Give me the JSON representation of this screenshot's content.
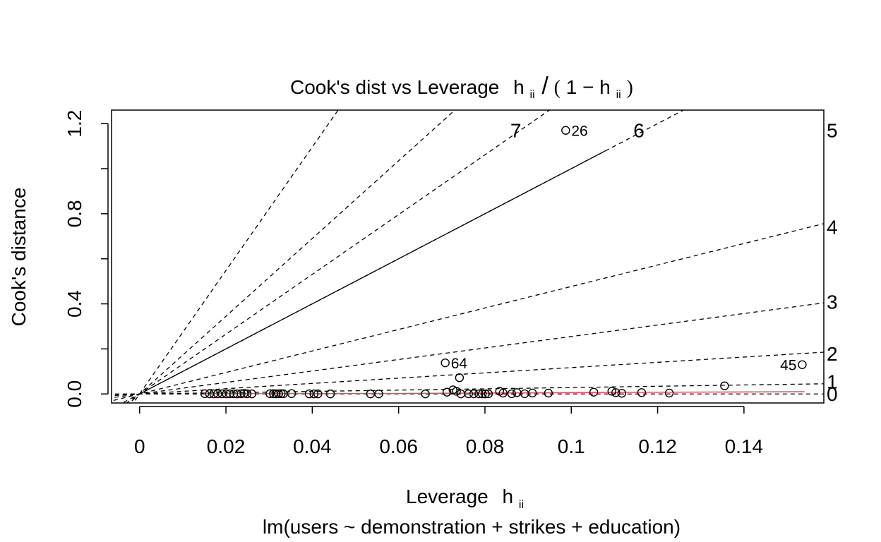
{
  "chart_data": {
    "type": "scatter",
    "title": "Cook's dist vs Leverage",
    "title_formula": {
      "h": "h",
      "ii": "ii",
      "slash": "/",
      "lparen": "(",
      "one_minus": "1 − ",
      "rparen": ")"
    },
    "xlabel": "Leverage",
    "xlabel_sym": {
      "h": "h",
      "ii": "ii"
    },
    "ylabel": "Cook's distance",
    "subtitle": "lm(users ~ demonstration + strikes + education)",
    "xlim": [
      -0.0065,
      0.1585
    ],
    "ylim": [
      -0.04,
      1.26
    ],
    "x_ticks": [
      0,
      0.02,
      0.04,
      0.06,
      0.08,
      0.1,
      0.12,
      0.14
    ],
    "x_tick_labels": [
      "0",
      "0.02",
      "0.04",
      "0.06",
      "0.08",
      "0.1",
      "0.12",
      "0.14"
    ],
    "y_ticks": [
      0,
      0.2,
      0.4,
      0.6,
      0.8,
      1.0,
      1.2
    ],
    "y_tick_labels": [
      "0.0",
      "",
      "0.4",
      "",
      "0.8",
      "",
      "1.2"
    ],
    "grid": false,
    "contour_slopes": [
      {
        "slope": 27.4,
        "label": ""
      },
      {
        "slope": 17.25,
        "label": ""
      },
      {
        "slope": 13.27,
        "label": "7"
      },
      {
        "slope": 10.0,
        "label": "6"
      },
      {
        "slope": 4.77,
        "label": "4"
      },
      {
        "slope": 2.55,
        "label": "3"
      },
      {
        "slope": 1.17,
        "label": "2"
      },
      {
        "slope": 0.285,
        "label": "1"
      },
      {
        "slope": 0.0,
        "label": "0"
      }
    ],
    "right_axis_labels": [
      {
        "label": "5",
        "y": 1.17
      },
      {
        "label": "4",
        "y": 0.742
      },
      {
        "label": "3",
        "y": 0.41
      },
      {
        "label": "2",
        "y": 0.18
      },
      {
        "label": "1",
        "y": 0.055
      },
      {
        "label": "0",
        "y": 0.0
      }
    ],
    "smooth_line": {
      "color": "#DF536B",
      "x": [
        0.015,
        0.06,
        0.1,
        0.154
      ],
      "y": [
        0.002,
        0.002,
        0.006,
        0.01
      ]
    },
    "points": {
      "x": [
        0.0151,
        0.0162,
        0.0172,
        0.0181,
        0.0191,
        0.0201,
        0.0209,
        0.0218,
        0.0226,
        0.0235,
        0.0242,
        0.0249,
        0.026,
        0.0302,
        0.031,
        0.0316,
        0.0322,
        0.0328,
        0.0333,
        0.0352,
        0.0393,
        0.0404,
        0.0413,
        0.0442,
        0.0535,
        0.0554,
        0.0662,
        0.0712,
        0.0726,
        0.0734,
        0.0744,
        0.0762,
        0.0774,
        0.0786,
        0.0794,
        0.0801,
        0.0808,
        0.0834,
        0.0842,
        0.0862,
        0.0874,
        0.0892,
        0.091,
        0.0947,
        0.1052,
        0.1094,
        0.1103,
        0.1117,
        0.1163,
        0.1227,
        0.1355,
        0.1535,
        0.0708,
        0.0741,
        0.0987
      ],
      "y": [
        0.001,
        0.0008,
        0.0005,
        0.0006,
        0.0007,
        0.0004,
        0.0009,
        0.0006,
        0.0004,
        0.0008,
        0.003,
        0.0007,
        0.0005,
        0.0011,
        0.0012,
        0.0007,
        0.0009,
        0.0013,
        0.0008,
        0.0017,
        0.0004,
        0.0005,
        0.0003,
        0.0003,
        0.0003,
        0.0002,
        0.0002,
        0.008,
        0.018,
        0.012,
        0.0005,
        0.0006,
        0.0007,
        0.0004,
        0.0005,
        0.0003,
        0.0006,
        0.012,
        0.004,
        0.001,
        0.006,
        0.001,
        0.004,
        0.004,
        0.008,
        0.012,
        0.006,
        0.003,
        0.006,
        0.004,
        0.036,
        0.13,
        0.138,
        0.072,
        1.17
      ]
    },
    "point_labels": [
      {
        "label": "64",
        "x": 0.0708,
        "y": 0.138
      },
      {
        "label": "45",
        "x": 0.1535,
        "y": 0.13
      },
      {
        "label": "26",
        "x": 0.0987,
        "y": 1.17
      }
    ]
  }
}
